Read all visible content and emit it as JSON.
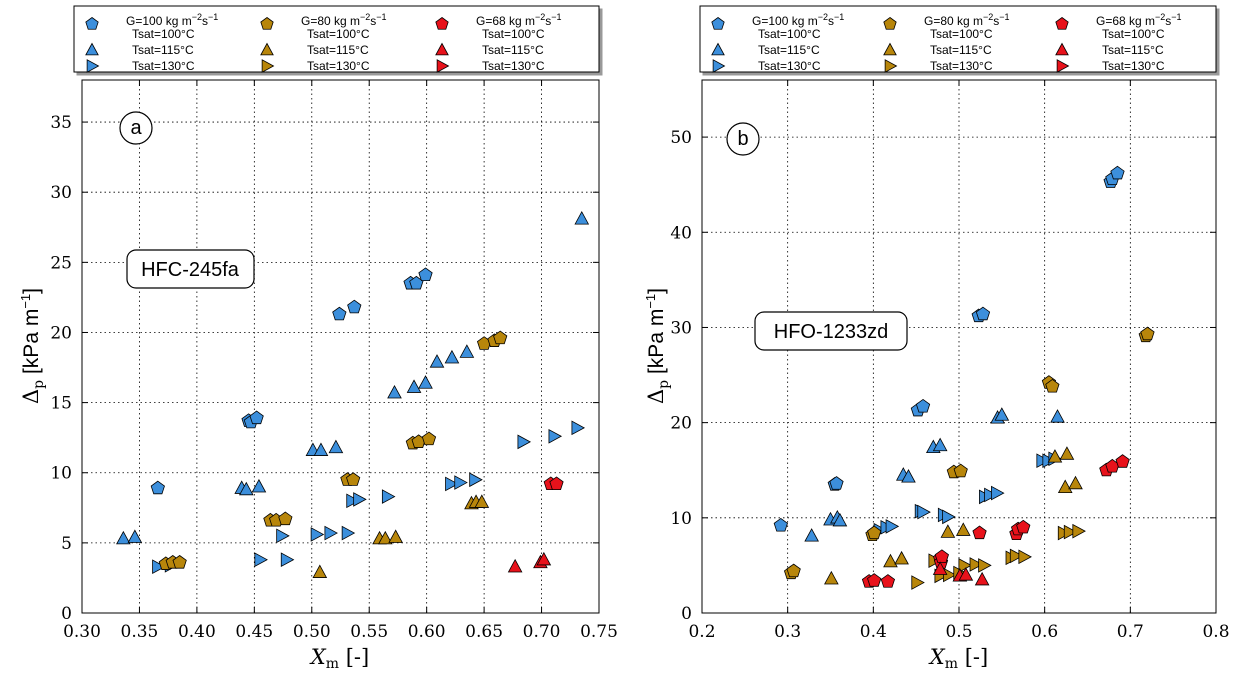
{
  "legend_entries": [
    "G=100 kg m$^{-2}$s$^{-1}$",
    "Tsat=100°C",
    "Tsat=115°C",
    "Tsat=130°C",
    "G=80 kg m$^{-2}$s$^{-1}$",
    "G=68 kg m$^{-2}$s$^{-1}$"
  ],
  "colors": {
    "G100": "#3c8fdc",
    "G80": "#b8860b",
    "G68": "#e8121b"
  },
  "marker_shapes": {
    "Tsat=100°C": "pentagon",
    "Tsat=115°C": "triangle-up",
    "Tsat=130°C": "triangle-right"
  },
  "chart_data": [
    {
      "type": "scatter",
      "panel_label": "a",
      "annotation": "HFC-245fa",
      "xlabel": "X_m [-]",
      "ylabel": "Δp [kPa m−1]",
      "xlim": [
        0.3,
        0.75
      ],
      "ylim": [
        0,
        38
      ],
      "xticks": [
        "0.30",
        "0.35",
        "0.40",
        "0.45",
        "0.50",
        "0.55",
        "0.60",
        "0.65",
        "0.70",
        "0.75"
      ],
      "yticks": [
        "0",
        "5",
        "10",
        "15",
        "20",
        "25",
        "30",
        "35"
      ],
      "grid": true,
      "legend_position": "top",
      "series": [
        {
          "G": "100",
          "Tsat": "100",
          "points": [
            [
              0.366,
              8.9
            ],
            [
              0.445,
              13.7
            ],
            [
              0.447,
              13.6
            ],
            [
              0.452,
              13.9
            ],
            [
              0.524,
              21.3
            ],
            [
              0.537,
              21.8
            ],
            [
              0.586,
              23.5
            ],
            [
              0.591,
              23.5
            ],
            [
              0.599,
              24.1
            ]
          ]
        },
        {
          "G": "100",
          "Tsat": "115",
          "points": [
            [
              0.336,
              5.3
            ],
            [
              0.346,
              5.4
            ],
            [
              0.439,
              8.9
            ],
            [
              0.443,
              8.8
            ],
            [
              0.454,
              9.0
            ],
            [
              0.501,
              11.6
            ],
            [
              0.508,
              11.6
            ],
            [
              0.521,
              11.8
            ],
            [
              0.572,
              15.7
            ],
            [
              0.589,
              16.1
            ],
            [
              0.599,
              16.4
            ],
            [
              0.609,
              17.9
            ],
            [
              0.622,
              18.2
            ],
            [
              0.635,
              18.6
            ],
            [
              0.735,
              28.1
            ]
          ]
        },
        {
          "G": "100",
          "Tsat": "130",
          "points": [
            [
              0.366,
              3.3
            ],
            [
              0.377,
              3.4
            ],
            [
              0.455,
              3.8
            ],
            [
              0.474,
              5.5
            ],
            [
              0.478,
              3.8
            ],
            [
              0.504,
              5.6
            ],
            [
              0.516,
              5.7
            ],
            [
              0.531,
              5.7
            ],
            [
              0.535,
              8.0
            ],
            [
              0.541,
              8.1
            ],
            [
              0.566,
              8.3
            ],
            [
              0.621,
              9.2
            ],
            [
              0.629,
              9.3
            ],
            [
              0.642,
              9.5
            ],
            [
              0.684,
              12.2
            ],
            [
              0.711,
              12.6
            ],
            [
              0.731,
              13.2
            ]
          ]
        },
        {
          "G": "80",
          "Tsat": "100",
          "points": [
            [
              0.373,
              3.5
            ],
            [
              0.379,
              3.6
            ],
            [
              0.385,
              3.6
            ],
            [
              0.464,
              6.6
            ],
            [
              0.469,
              6.6
            ],
            [
              0.477,
              6.7
            ],
            [
              0.531,
              9.5
            ],
            [
              0.536,
              9.5
            ],
            [
              0.588,
              12.1
            ],
            [
              0.593,
              12.2
            ],
            [
              0.602,
              12.4
            ],
            [
              0.65,
              19.2
            ],
            [
              0.659,
              19.4
            ],
            [
              0.664,
              19.6
            ]
          ]
        },
        {
          "G": "80",
          "Tsat": "115",
          "points": [
            [
              0.507,
              2.9
            ],
            [
              0.559,
              5.3
            ],
            [
              0.564,
              5.3
            ],
            [
              0.573,
              5.4
            ],
            [
              0.639,
              7.8
            ],
            [
              0.643,
              7.9
            ],
            [
              0.648,
              7.9
            ]
          ]
        },
        {
          "G": "68",
          "Tsat": "100",
          "points": [
            [
              0.708,
              9.2
            ],
            [
              0.713,
              9.2
            ]
          ]
        },
        {
          "G": "68",
          "Tsat": "115",
          "points": [
            [
              0.677,
              3.3
            ],
            [
              0.699,
              3.6
            ],
            [
              0.702,
              3.8
            ]
          ]
        }
      ]
    },
    {
      "type": "scatter",
      "panel_label": "b",
      "annotation": "HFO-1233zd",
      "xlabel": "X_m [-]",
      "ylabel": "Δp [kPa m−1]",
      "xlim": [
        0.2,
        0.8
      ],
      "ylim": [
        0,
        56
      ],
      "xticks": [
        "0.2",
        "0.3",
        "0.4",
        "0.5",
        "0.6",
        "0.7",
        "0.8"
      ],
      "yticks": [
        "0",
        "10",
        "20",
        "30",
        "40",
        "50"
      ],
      "grid": true,
      "legend_position": "top",
      "series": [
        {
          "G": "100",
          "Tsat": "100",
          "points": [
            [
              0.292,
              9.2
            ],
            [
              0.355,
              13.5
            ],
            [
              0.357,
              13.6
            ],
            [
              0.452,
              21.3
            ],
            [
              0.458,
              21.7
            ],
            [
              0.523,
              31.2
            ],
            [
              0.528,
              31.4
            ],
            [
              0.677,
              45.3
            ],
            [
              0.679,
              45.6
            ],
            [
              0.685,
              46.2
            ]
          ]
        },
        {
          "G": "100",
          "Tsat": "115",
          "points": [
            [
              0.328,
              8.1
            ],
            [
              0.35,
              9.8
            ],
            [
              0.358,
              10.0
            ],
            [
              0.361,
              9.7
            ],
            [
              0.435,
              14.5
            ],
            [
              0.441,
              14.3
            ],
            [
              0.47,
              17.4
            ],
            [
              0.478,
              17.6
            ],
            [
              0.545,
              20.5
            ],
            [
              0.55,
              20.8
            ],
            [
              0.615,
              20.6
            ]
          ]
        },
        {
          "G": "100",
          "Tsat": "130",
          "points": [
            [
              0.407,
              8.7
            ],
            [
              0.415,
              9.0
            ],
            [
              0.421,
              9.1
            ],
            [
              0.455,
              10.7
            ],
            [
              0.458,
              10.6
            ],
            [
              0.482,
              10.3
            ],
            [
              0.487,
              10.1
            ],
            [
              0.53,
              12.2
            ],
            [
              0.536,
              12.4
            ],
            [
              0.544,
              12.6
            ],
            [
              0.597,
              16.0
            ],
            [
              0.604,
              16.0
            ],
            [
              0.611,
              16.2
            ]
          ]
        },
        {
          "G": "80",
          "Tsat": "100",
          "points": [
            [
              0.304,
              4.2
            ],
            [
              0.307,
              4.4
            ],
            [
              0.399,
              8.2
            ],
            [
              0.401,
              8.4
            ],
            [
              0.494,
              14.8
            ],
            [
              0.502,
              14.9
            ],
            [
              0.605,
              24.2
            ],
            [
              0.609,
              23.8
            ],
            [
              0.718,
              29.1
            ],
            [
              0.72,
              29.3
            ]
          ]
        },
        {
          "G": "80",
          "Tsat": "115",
          "points": [
            [
              0.351,
              3.6
            ],
            [
              0.42,
              5.4
            ],
            [
              0.433,
              5.7
            ],
            [
              0.487,
              8.5
            ],
            [
              0.505,
              8.7
            ],
            [
              0.612,
              16.4
            ],
            [
              0.624,
              13.2
            ],
            [
              0.626,
              16.7
            ],
            [
              0.636,
              13.6
            ]
          ]
        },
        {
          "G": "80",
          "Tsat": "130",
          "points": [
            [
              0.451,
              3.2
            ],
            [
              0.471,
              5.5
            ],
            [
              0.478,
              3.9
            ],
            [
              0.488,
              4.0
            ],
            [
              0.5,
              4.2
            ],
            [
              0.506,
              5.0
            ],
            [
              0.519,
              5.1
            ],
            [
              0.529,
              5.0
            ],
            [
              0.561,
              5.8
            ],
            [
              0.566,
              6.0
            ],
            [
              0.576,
              5.9
            ],
            [
              0.622,
              8.4
            ],
            [
              0.629,
              8.5
            ],
            [
              0.639,
              8.6
            ]
          ]
        },
        {
          "G": "68",
          "Tsat": "100",
          "points": [
            [
              0.395,
              3.3
            ],
            [
              0.401,
              3.4
            ],
            [
              0.417,
              3.3
            ],
            [
              0.478,
              5.7
            ],
            [
              0.479,
              5.3
            ],
            [
              0.48,
              5.9
            ],
            [
              0.524,
              8.4
            ],
            [
              0.567,
              8.3
            ],
            [
              0.569,
              8.8
            ],
            [
              0.575,
              9.0
            ],
            [
              0.672,
              15.0
            ],
            [
              0.679,
              15.4
            ],
            [
              0.691,
              15.9
            ]
          ]
        },
        {
          "G": "68",
          "Tsat": "115",
          "points": [
            [
              0.478,
              4.6
            ],
            [
              0.501,
              3.9
            ],
            [
              0.508,
              4.0
            ],
            [
              0.527,
              3.5
            ]
          ]
        }
      ]
    }
  ]
}
